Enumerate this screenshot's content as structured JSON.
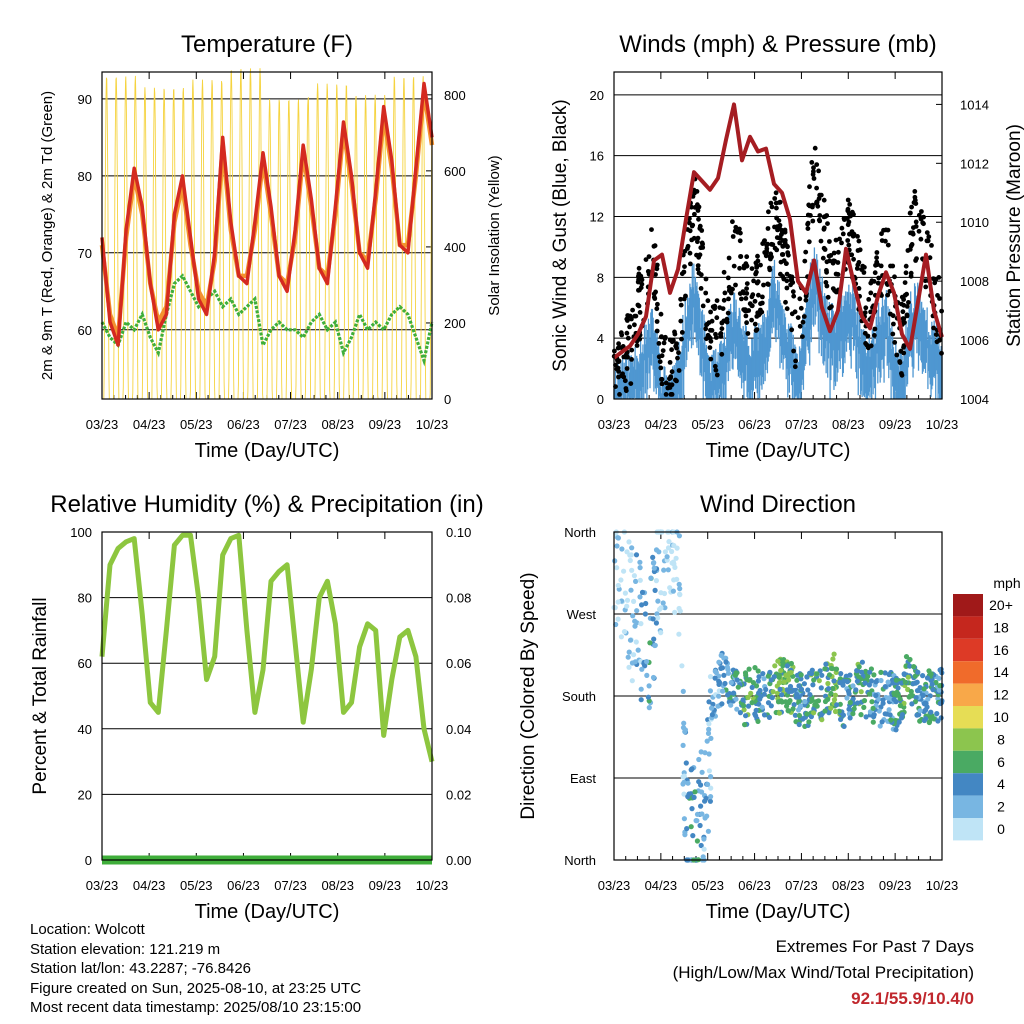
{
  "chart_data": [
    {
      "type": "line",
      "title": "Temperature (F)",
      "xlabel": "Time (Day/UTC)",
      "ylabel": "2m & 9m T (Red, Orange) & 2m Td (Green)",
      "y2label": "Solar Insolation (Yellow)",
      "x_ticks": [
        "03/23",
        "04/23",
        "05/23",
        "06/23",
        "07/23",
        "08/23",
        "09/23",
        "10/23"
      ],
      "y_ticks": [
        60,
        70,
        80,
        90
      ],
      "y2_ticks": [
        0,
        200,
        400,
        600,
        800
      ],
      "ylim": [
        51,
        93.5
      ],
      "y2lim": [
        0,
        860
      ],
      "series": [
        {
          "name": "2m T",
          "color": "#d42a20",
          "values": [
            72,
            61,
            58,
            73,
            81,
            76,
            66,
            60,
            62,
            75,
            80,
            72,
            64,
            62,
            70,
            85,
            74,
            67,
            66,
            74,
            83,
            76,
            67,
            65,
            73,
            84,
            77,
            68,
            66,
            76,
            87,
            80,
            70,
            68,
            78,
            89,
            82,
            71,
            70,
            81,
            92,
            85
          ]
        },
        {
          "name": "9m T",
          "color": "#f4922f",
          "values": [
            71,
            62,
            59,
            72,
            80,
            75,
            66,
            61,
            63,
            74,
            79,
            71,
            65,
            63,
            69,
            84,
            73,
            67,
            67,
            73,
            82,
            75,
            67,
            66,
            72,
            83,
            76,
            68,
            67,
            75,
            86,
            79,
            70,
            69,
            77,
            88,
            81,
            71,
            71,
            80,
            91,
            84
          ]
        },
        {
          "name": "2m Td",
          "color": "#3fae3a",
          "values": [
            61,
            59,
            58,
            61,
            60,
            62,
            59,
            57,
            62,
            66,
            67,
            65,
            63,
            64,
            65,
            63,
            64,
            62,
            63,
            64,
            58,
            60,
            61,
            60,
            60,
            59,
            61,
            62,
            60,
            61,
            57,
            59,
            62,
            60,
            61,
            60,
            62,
            63,
            62,
            59,
            56,
            61
          ]
        },
        {
          "name": "Solar Insolation",
          "axis": "y2",
          "color": "#f5d33f",
          "peaks": [
            850,
            820,
            840,
            870,
            790,
            830,
            800,
            850
          ]
        }
      ]
    },
    {
      "type": "line",
      "title": "Winds (mph) & Pressure (mb)",
      "xlabel": "Time (Day/UTC)",
      "ylabel": "Sonic Wind & Gust (Blue, Black)",
      "y2label": "Station Pressure (Maroon)",
      "x_ticks": [
        "03/23",
        "04/23",
        "05/23",
        "06/23",
        "07/23",
        "08/23",
        "09/23",
        "10/23"
      ],
      "y_ticks": [
        0,
        4,
        8,
        12,
        16,
        20
      ],
      "y2_ticks": [
        1004,
        1006,
        1008,
        1010,
        1012,
        1014
      ],
      "ylim": [
        0,
        21.5
      ],
      "y2lim": [
        1004,
        1015.1
      ],
      "series": [
        {
          "name": "Wind",
          "color": "#4f97d1",
          "values": [
            1,
            2,
            2,
            3,
            4,
            5,
            1,
            1,
            2,
            6,
            8,
            5,
            2,
            2,
            4,
            6,
            5,
            3,
            4,
            5,
            8,
            6,
            4,
            2,
            6,
            9,
            7,
            5,
            5,
            7,
            6,
            4,
            3,
            5,
            6,
            3,
            2,
            6,
            7,
            5,
            4,
            3
          ]
        },
        {
          "name": "Gust",
          "color": "#000000",
          "values": [
            1,
            3,
            3,
            6,
            8,
            9,
            3,
            2,
            3,
            9,
            13,
            9,
            4,
            4,
            7,
            10,
            9,
            6,
            7,
            9,
            12,
            10,
            7,
            3,
            9,
            15,
            12,
            8,
            8,
            11,
            10,
            7,
            5,
            8,
            10,
            6,
            4,
            10,
            12,
            9,
            7,
            5
          ]
        },
        {
          "name": "Pressure",
          "axis": "y2",
          "color": "#a51d22",
          "values": [
            1005.4,
            1005.6,
            1005.8,
            1006.2,
            1006.8,
            1008.7,
            1008.9,
            1007.6,
            1008.4,
            1010.1,
            1011.7,
            1011.4,
            1011.1,
            1011.5,
            1012.8,
            1014.0,
            1012.1,
            1012.9,
            1012.4,
            1012.5,
            1011.3,
            1011.0,
            1010.1,
            1008.0,
            1007.6,
            1008.7,
            1007.1,
            1006.3,
            1007.0,
            1009.1,
            1007.9,
            1006.8,
            1006.4,
            1007.5,
            1008.3,
            1007.6,
            1006.2,
            1005.7,
            1007.3,
            1008.9,
            1007.0,
            1006.1
          ]
        }
      ]
    },
    {
      "type": "line",
      "title": "Relative Humidity (%) & Precipitation (in)",
      "xlabel": "Time (Day/UTC)",
      "ylabel": "Percent & Total Rainfall",
      "x_ticks": [
        "03/23",
        "04/23",
        "05/23",
        "06/23",
        "07/23",
        "08/23",
        "09/23",
        "10/23"
      ],
      "y_ticks": [
        0,
        20,
        40,
        60,
        80,
        100
      ],
      "y2_ticks": [
        "0.00",
        "0.02",
        "0.04",
        "0.06",
        "0.08",
        "0.10"
      ],
      "ylim": [
        0,
        100
      ],
      "y2lim": [
        0,
        0.1
      ],
      "series": [
        {
          "name": "Relative Humidity",
          "color": "#8dc63f",
          "values": [
            62,
            90,
            95,
            97,
            98,
            75,
            48,
            45,
            70,
            96,
            99,
            99,
            80,
            55,
            62,
            93,
            98,
            99,
            70,
            45,
            58,
            85,
            88,
            90,
            66,
            42,
            58,
            80,
            85,
            72,
            45,
            48,
            65,
            72,
            70,
            38,
            55,
            68,
            70,
            62,
            40,
            30
          ]
        },
        {
          "name": "Precipitation",
          "axis": "y2",
          "color": "#3fae3a",
          "values": [
            0,
            0
          ]
        }
      ]
    },
    {
      "type": "scatter",
      "title": "Wind Direction",
      "xlabel": "Time (Day/UTC)",
      "ylabel": "Direction (Colored By Speed)",
      "x_ticks": [
        "03/23",
        "04/23",
        "05/23",
        "06/23",
        "07/23",
        "08/23",
        "09/23",
        "10/23"
      ],
      "y_ticks": [
        "North",
        "East",
        "South",
        "West",
        "North"
      ],
      "colorbar": {
        "title": "mph",
        "labels": [
          "20+",
          "18",
          "16",
          "14",
          "12",
          "10",
          "8",
          "6",
          "4",
          "2",
          "0"
        ],
        "colors": [
          "#a01919",
          "#c5271e",
          "#dd3a26",
          "#f06b2b",
          "#f8a849",
          "#e6dd55",
          "#8cc54e",
          "#4aaa63",
          "#4387c3",
          "#78b6e2",
          "#bfe4f6"
        ]
      }
    }
  ],
  "colors": {
    "speed_0": "#bfe4f6",
    "speed_2": "#78b6e2",
    "speed_4": "#4387c3",
    "speed_6": "#4aaa63",
    "speed_8": "#8cc54e",
    "speed_10": "#e6dd55"
  },
  "info": {
    "location": "Location: Wolcott",
    "elevation": "Station elevation: 121.219 m",
    "latlon": "Station lat/lon: 43.2287; -76.8426",
    "created": "Figure created on Sun, 2025-08-10, at 23:25 UTC",
    "recent": "Most recent data timestamp: 2025/08/10 23:15:00"
  },
  "extremes": {
    "title": "Extremes For Past 7 Days",
    "subtitle": "(High/Low/Max Wind/Total Precipitation)",
    "values": "92.1/55.9/10.4/0"
  }
}
